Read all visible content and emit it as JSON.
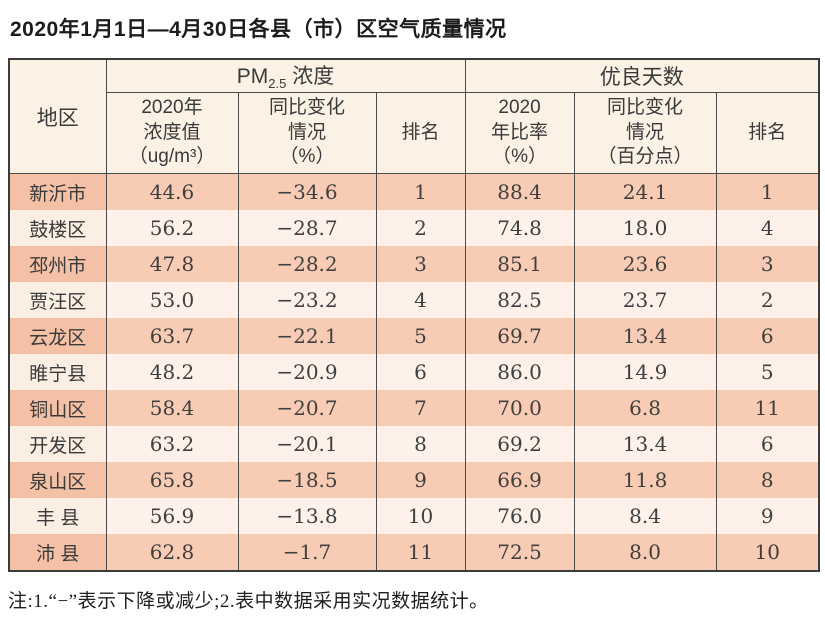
{
  "title": "2020年1月1日—4月30日各县（市）区空气质量情况",
  "table": {
    "header": {
      "region": "地区",
      "pm_group": {
        "prefix": "PM",
        "sub": "2.5",
        "suffix": " 浓度"
      },
      "good_group": "优良天数",
      "pm_value": "2020年\n浓度值\n（ug/m³）",
      "pm_change": "同比变化\n情况\n（%）",
      "pm_rank": "排名",
      "good_ratio": "2020\n年比率\n（%）",
      "good_change": "同比变化\n情况\n（百分点）",
      "good_rank": "排名"
    },
    "rows": [
      {
        "region": "新沂市",
        "pm_value": "44.6",
        "pm_change": "−34.6",
        "pm_rank": "1",
        "good_ratio": "88.4",
        "good_change": "24.1",
        "good_rank": "1"
      },
      {
        "region": "鼓楼区",
        "pm_value": "56.2",
        "pm_change": "−28.7",
        "pm_rank": "2",
        "good_ratio": "74.8",
        "good_change": "18.0",
        "good_rank": "4"
      },
      {
        "region": "邳州市",
        "pm_value": "47.8",
        "pm_change": "−28.2",
        "pm_rank": "3",
        "good_ratio": "85.1",
        "good_change": "23.6",
        "good_rank": "3"
      },
      {
        "region": "贾汪区",
        "pm_value": "53.0",
        "pm_change": "−23.2",
        "pm_rank": "4",
        "good_ratio": "82.5",
        "good_change": "23.7",
        "good_rank": "2"
      },
      {
        "region": "云龙区",
        "pm_value": "63.7",
        "pm_change": "−22.1",
        "pm_rank": "5",
        "good_ratio": "69.7",
        "good_change": "13.4",
        "good_rank": "6"
      },
      {
        "region": "睢宁县",
        "pm_value": "48.2",
        "pm_change": "−20.9",
        "pm_rank": "6",
        "good_ratio": "86.0",
        "good_change": "14.9",
        "good_rank": "5"
      },
      {
        "region": "铜山区",
        "pm_value": "58.4",
        "pm_change": "−20.7",
        "pm_rank": "7",
        "good_ratio": "70.0",
        "good_change": "6.8",
        "good_rank": "11"
      },
      {
        "region": "开发区",
        "pm_value": "63.2",
        "pm_change": "−20.1",
        "pm_rank": "8",
        "good_ratio": "69.2",
        "good_change": "13.4",
        "good_rank": "6"
      },
      {
        "region": "泉山区",
        "pm_value": "65.8",
        "pm_change": "−18.5",
        "pm_rank": "9",
        "good_ratio": "66.9",
        "good_change": "11.8",
        "good_rank": "8"
      },
      {
        "region": "丰 县",
        "pm_value": "56.9",
        "pm_change": "−13.8",
        "pm_rank": "10",
        "good_ratio": "76.0",
        "good_change": "8.4",
        "good_rank": "9"
      },
      {
        "region": "沛 县",
        "pm_value": "62.8",
        "pm_change": "−1.7",
        "pm_rank": "11",
        "good_ratio": "72.5",
        "good_change": "8.0",
        "good_rank": "10"
      }
    ]
  },
  "note": "注:1.“−”表示下降或减少;2.表中数据采用实况数据统计。"
}
